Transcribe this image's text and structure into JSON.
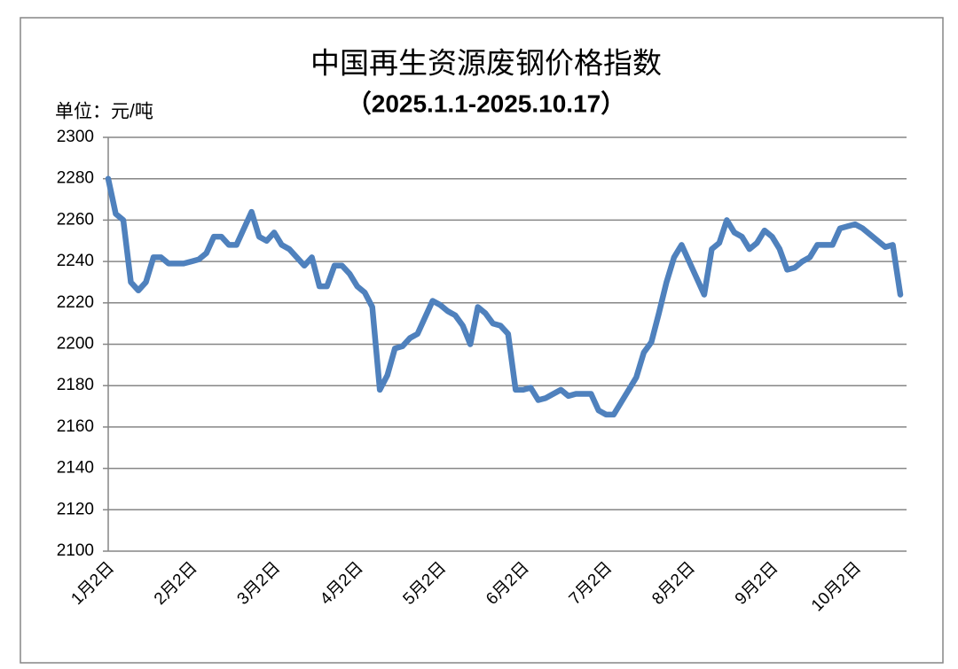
{
  "chart_data": {
    "type": "line",
    "title": "中国再生资源废钢价格指数",
    "subtitle": "（2025.1.1-2025.10.17）",
    "y_label": "单位：元/吨",
    "categories": [
      "1月2日",
      null,
      null,
      null,
      null,
      null,
      null,
      null,
      null,
      null,
      null,
      "2月2日",
      null,
      null,
      null,
      null,
      null,
      null,
      null,
      null,
      null,
      null,
      "3月2日",
      null,
      null,
      null,
      null,
      null,
      null,
      null,
      null,
      null,
      null,
      "4月2日",
      null,
      null,
      null,
      null,
      null,
      null,
      null,
      null,
      null,
      null,
      "5月2日",
      null,
      null,
      null,
      null,
      null,
      null,
      null,
      null,
      null,
      null,
      "6月2日",
      null,
      null,
      null,
      null,
      null,
      null,
      null,
      null,
      null,
      null,
      "7月2日",
      null,
      null,
      null,
      null,
      null,
      null,
      null,
      null,
      null,
      null,
      "8月2日",
      null,
      null,
      null,
      null,
      null,
      null,
      null,
      null,
      null,
      null,
      "9月2日",
      null,
      null,
      null,
      null,
      null,
      null,
      null,
      null,
      null,
      null,
      "10月2日",
      null,
      null,
      null,
      null,
      null,
      null
    ],
    "values": [
      2280,
      2263,
      2260,
      2230,
      2226,
      2230,
      2242,
      2242,
      2239,
      2239,
      2239,
      2240,
      2241,
      2244,
      2252,
      2252,
      2248,
      2248,
      2256,
      2264,
      2252,
      2250,
      2254,
      2248,
      2246,
      2242,
      2238,
      2242,
      2228,
      2228,
      2238,
      2238,
      2234,
      2228,
      2225,
      2218,
      2178,
      2185,
      2198,
      2199,
      2203,
      2205,
      2213,
      2221,
      2219,
      2216,
      2214,
      2209,
      2200,
      2218,
      2215,
      2210,
      2209,
      2205,
      2178,
      2178,
      2179,
      2173,
      2174,
      2176,
      2178,
      2175,
      2176,
      2176,
      2176,
      2168,
      2166,
      2166,
      2172,
      2178,
      2184,
      2196,
      2201,
      2215,
      2230,
      2242,
      2248,
      2240,
      2232,
      2224,
      2246,
      2249,
      2260,
      2254,
      2252,
      2246,
      2249,
      2255,
      2252,
      2246,
      2236,
      2237,
      2240,
      2242,
      2248,
      2248,
      2248,
      2256,
      2257,
      2258,
      2256,
      2253,
      2250,
      2247,
      2248,
      2224
    ],
    "color": "#4f81bd",
    "ylim": [
      2100,
      2300
    ],
    "yticks": [
      2100,
      2120,
      2140,
      2160,
      2180,
      2200,
      2220,
      2240,
      2260,
      2280,
      2300
    ],
    "grid": true
  }
}
